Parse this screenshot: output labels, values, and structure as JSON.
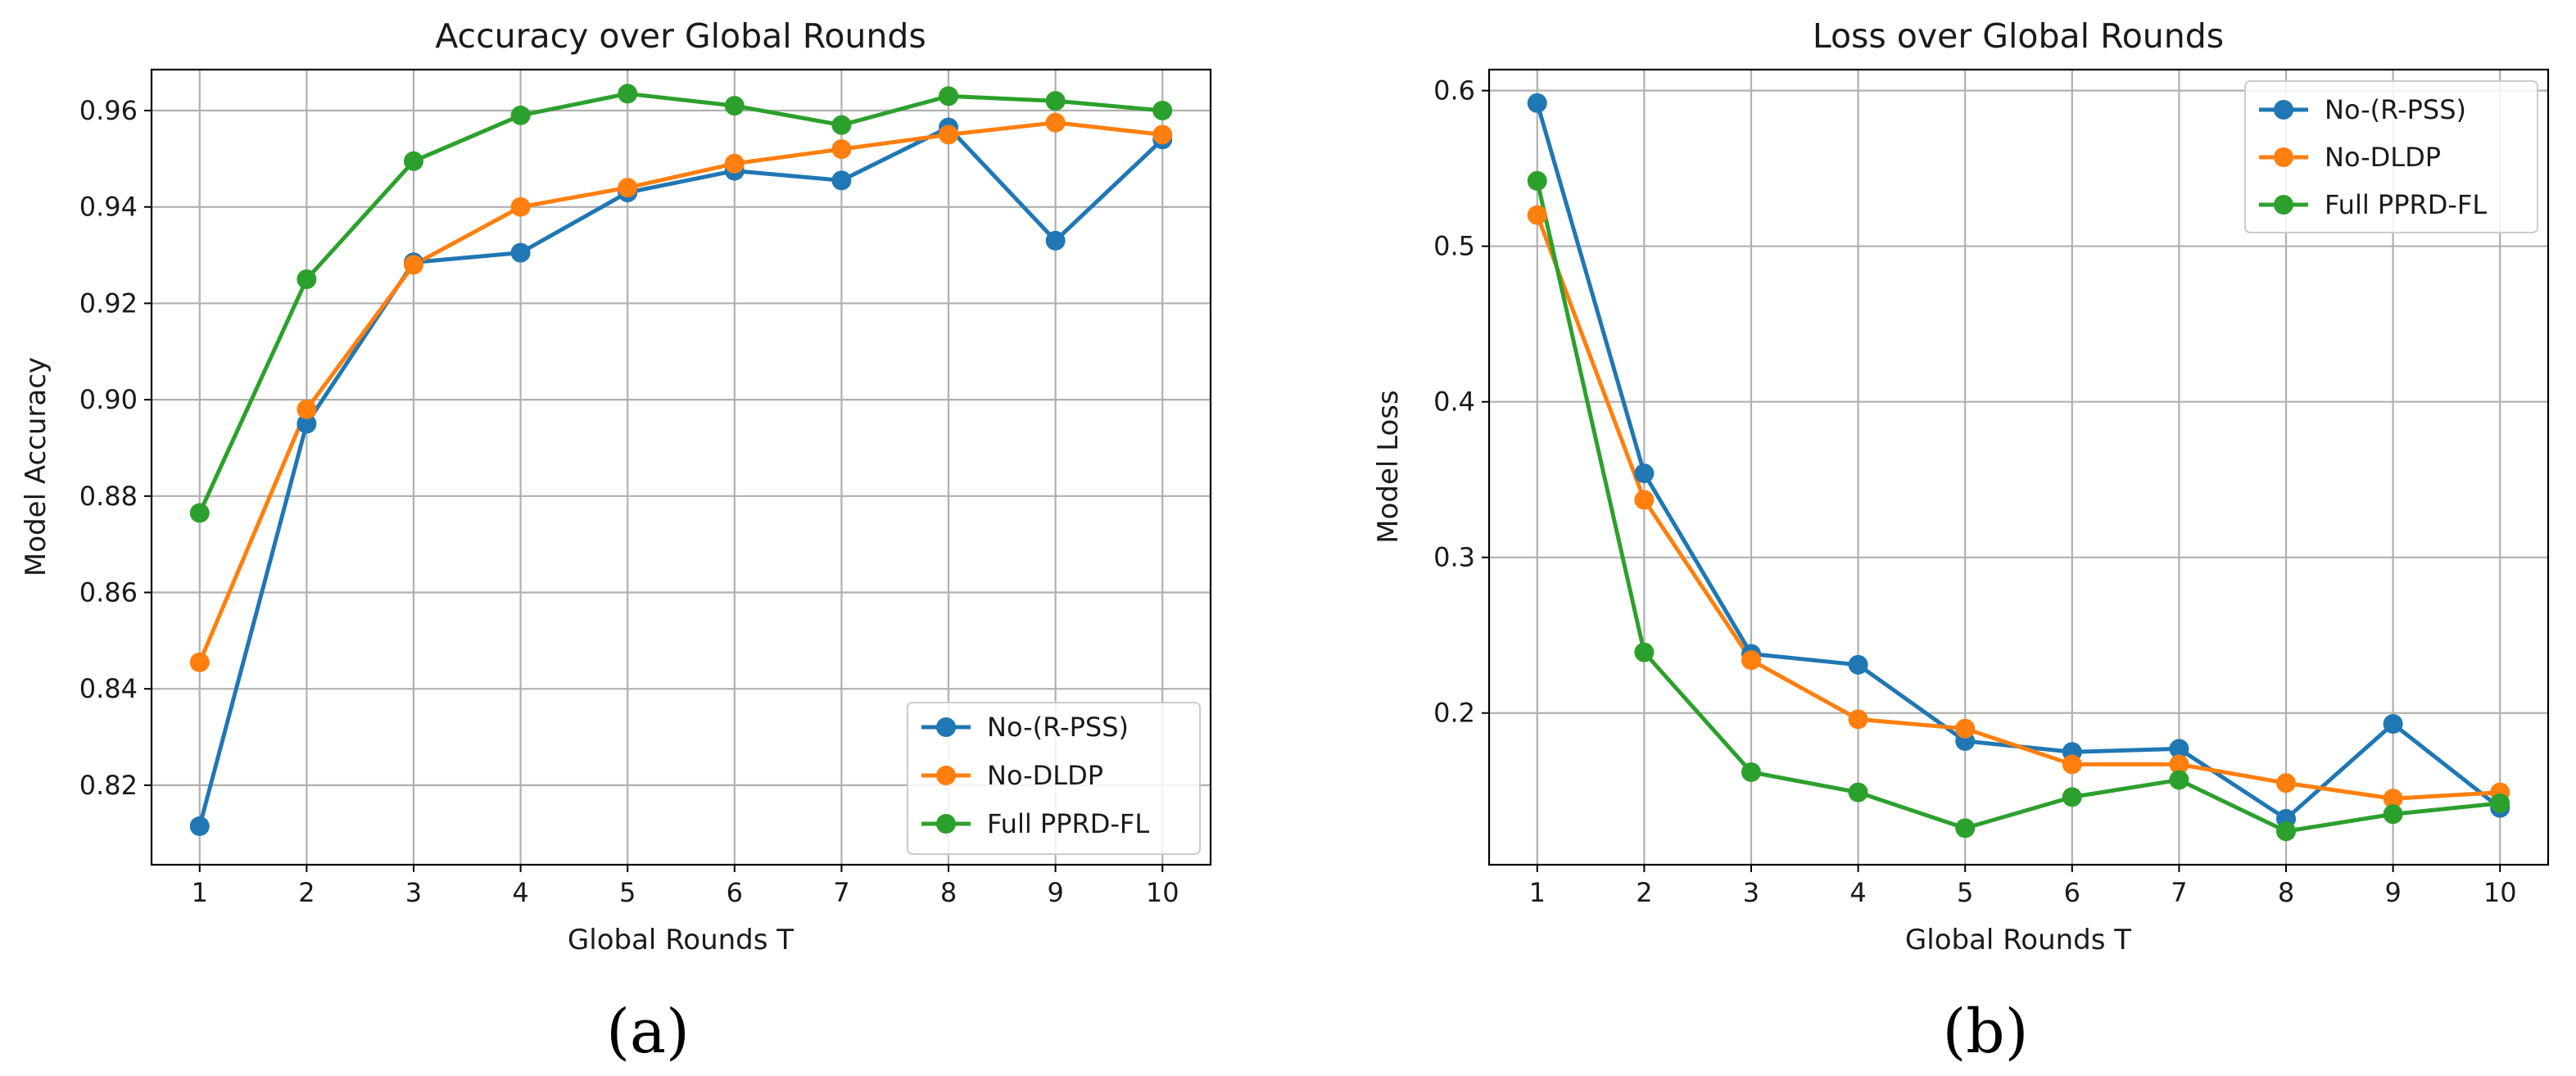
{
  "colors": {
    "no_rpss": "#1f77b4",
    "no_dldp": "#ff7f0e",
    "full_pprd": "#2ca02c"
  },
  "chart_data": [
    {
      "type": "line",
      "panel_caption": "(a)",
      "title": "Accuracy over Global Rounds",
      "xlabel": "Global Rounds T",
      "ylabel": "Model Accuracy",
      "x": [
        1,
        2,
        3,
        4,
        5,
        6,
        7,
        8,
        9,
        10
      ],
      "xticks": [
        "1",
        "2",
        "3",
        "4",
        "5",
        "6",
        "7",
        "8",
        "9",
        "10"
      ],
      "xlim": [
        0.55,
        10.45
      ],
      "ylim": [
        0.8035,
        0.9685
      ],
      "yticks": [
        0.82,
        0.84,
        0.86,
        0.88,
        0.9,
        0.92,
        0.94,
        0.96
      ],
      "ytick_labels": [
        "0.82",
        "0.84",
        "0.86",
        "0.88",
        "0.90",
        "0.92",
        "0.94",
        "0.96"
      ],
      "grid": true,
      "legend_position": "lower-right",
      "series": [
        {
          "name": "No-(R-PSS)",
          "color_key": "no_rpss",
          "values": [
            0.8115,
            0.895,
            0.9285,
            0.9305,
            0.943,
            0.9475,
            0.9455,
            0.9565,
            0.933,
            0.954
          ]
        },
        {
          "name": "No-DLDP",
          "color_key": "no_dldp",
          "values": [
            0.8455,
            0.898,
            0.928,
            0.94,
            0.944,
            0.949,
            0.952,
            0.955,
            0.9575,
            0.955
          ]
        },
        {
          "name": "Full PPRD-FL",
          "color_key": "full_pprd",
          "values": [
            0.8765,
            0.925,
            0.9495,
            0.959,
            0.9635,
            0.961,
            0.957,
            0.963,
            0.962,
            0.96
          ]
        }
      ]
    },
    {
      "type": "line",
      "panel_caption": "(b)",
      "title": "Loss over Global Rounds",
      "xlabel": "Global Rounds T",
      "ylabel": "Model Loss",
      "x": [
        1,
        2,
        3,
        4,
        5,
        6,
        7,
        8,
        9,
        10
      ],
      "xticks": [
        "1",
        "2",
        "3",
        "4",
        "5",
        "6",
        "7",
        "8",
        "9",
        "10"
      ],
      "xlim": [
        0.55,
        10.45
      ],
      "ylim": [
        0.1025,
        0.6135
      ],
      "yticks": [
        0.2,
        0.3,
        0.4,
        0.5,
        0.6
      ],
      "ytick_labels": [
        "0.2",
        "0.3",
        "0.4",
        "0.5",
        "0.6"
      ],
      "grid": true,
      "legend_position": "top-right",
      "series": [
        {
          "name": "No-(R-PSS)",
          "color_key": "no_rpss",
          "values": [
            0.592,
            0.354,
            0.238,
            0.231,
            0.182,
            0.175,
            0.177,
            0.132,
            0.193,
            0.139
          ]
        },
        {
          "name": "No-DLDP",
          "color_key": "no_dldp",
          "values": [
            0.52,
            0.337,
            0.234,
            0.196,
            0.19,
            0.167,
            0.167,
            0.155,
            0.145,
            0.149
          ]
        },
        {
          "name": "Full PPRD-FL",
          "color_key": "full_pprd",
          "values": [
            0.542,
            0.239,
            0.162,
            0.149,
            0.126,
            0.146,
            0.157,
            0.124,
            0.135,
            0.142
          ]
        }
      ]
    }
  ]
}
